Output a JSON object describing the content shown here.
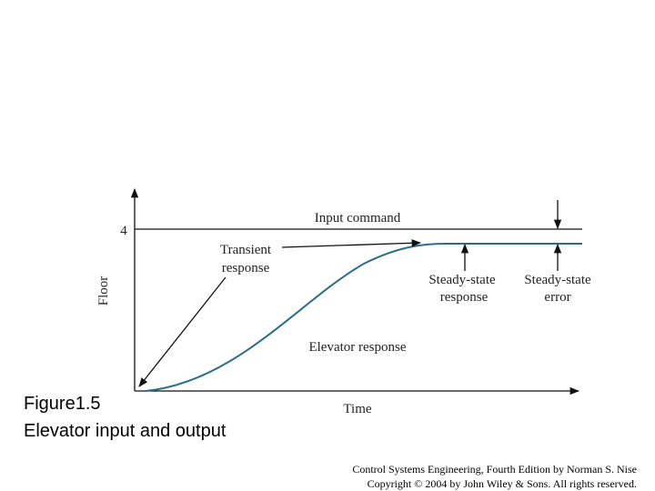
{
  "figure": {
    "number": "Figure1.5",
    "caption": "Elevator input and output"
  },
  "diagram": {
    "y_axis_label": "Floor",
    "x_axis_label": "Time",
    "y_tick": "4",
    "input_label": "Input command",
    "response_label": "Elevator response",
    "transient_label": [
      "Transient",
      "response"
    ],
    "steady_response_label": [
      "Steady-state",
      "response"
    ],
    "steady_error_label": [
      "Steady-state",
      "error"
    ]
  },
  "footer": {
    "line1": "Control Systems Engineering, Fourth Edition by Norman S. Nise",
    "line2": "Copyright © 2004 by John Wiley & Sons. All rights reserved."
  }
}
